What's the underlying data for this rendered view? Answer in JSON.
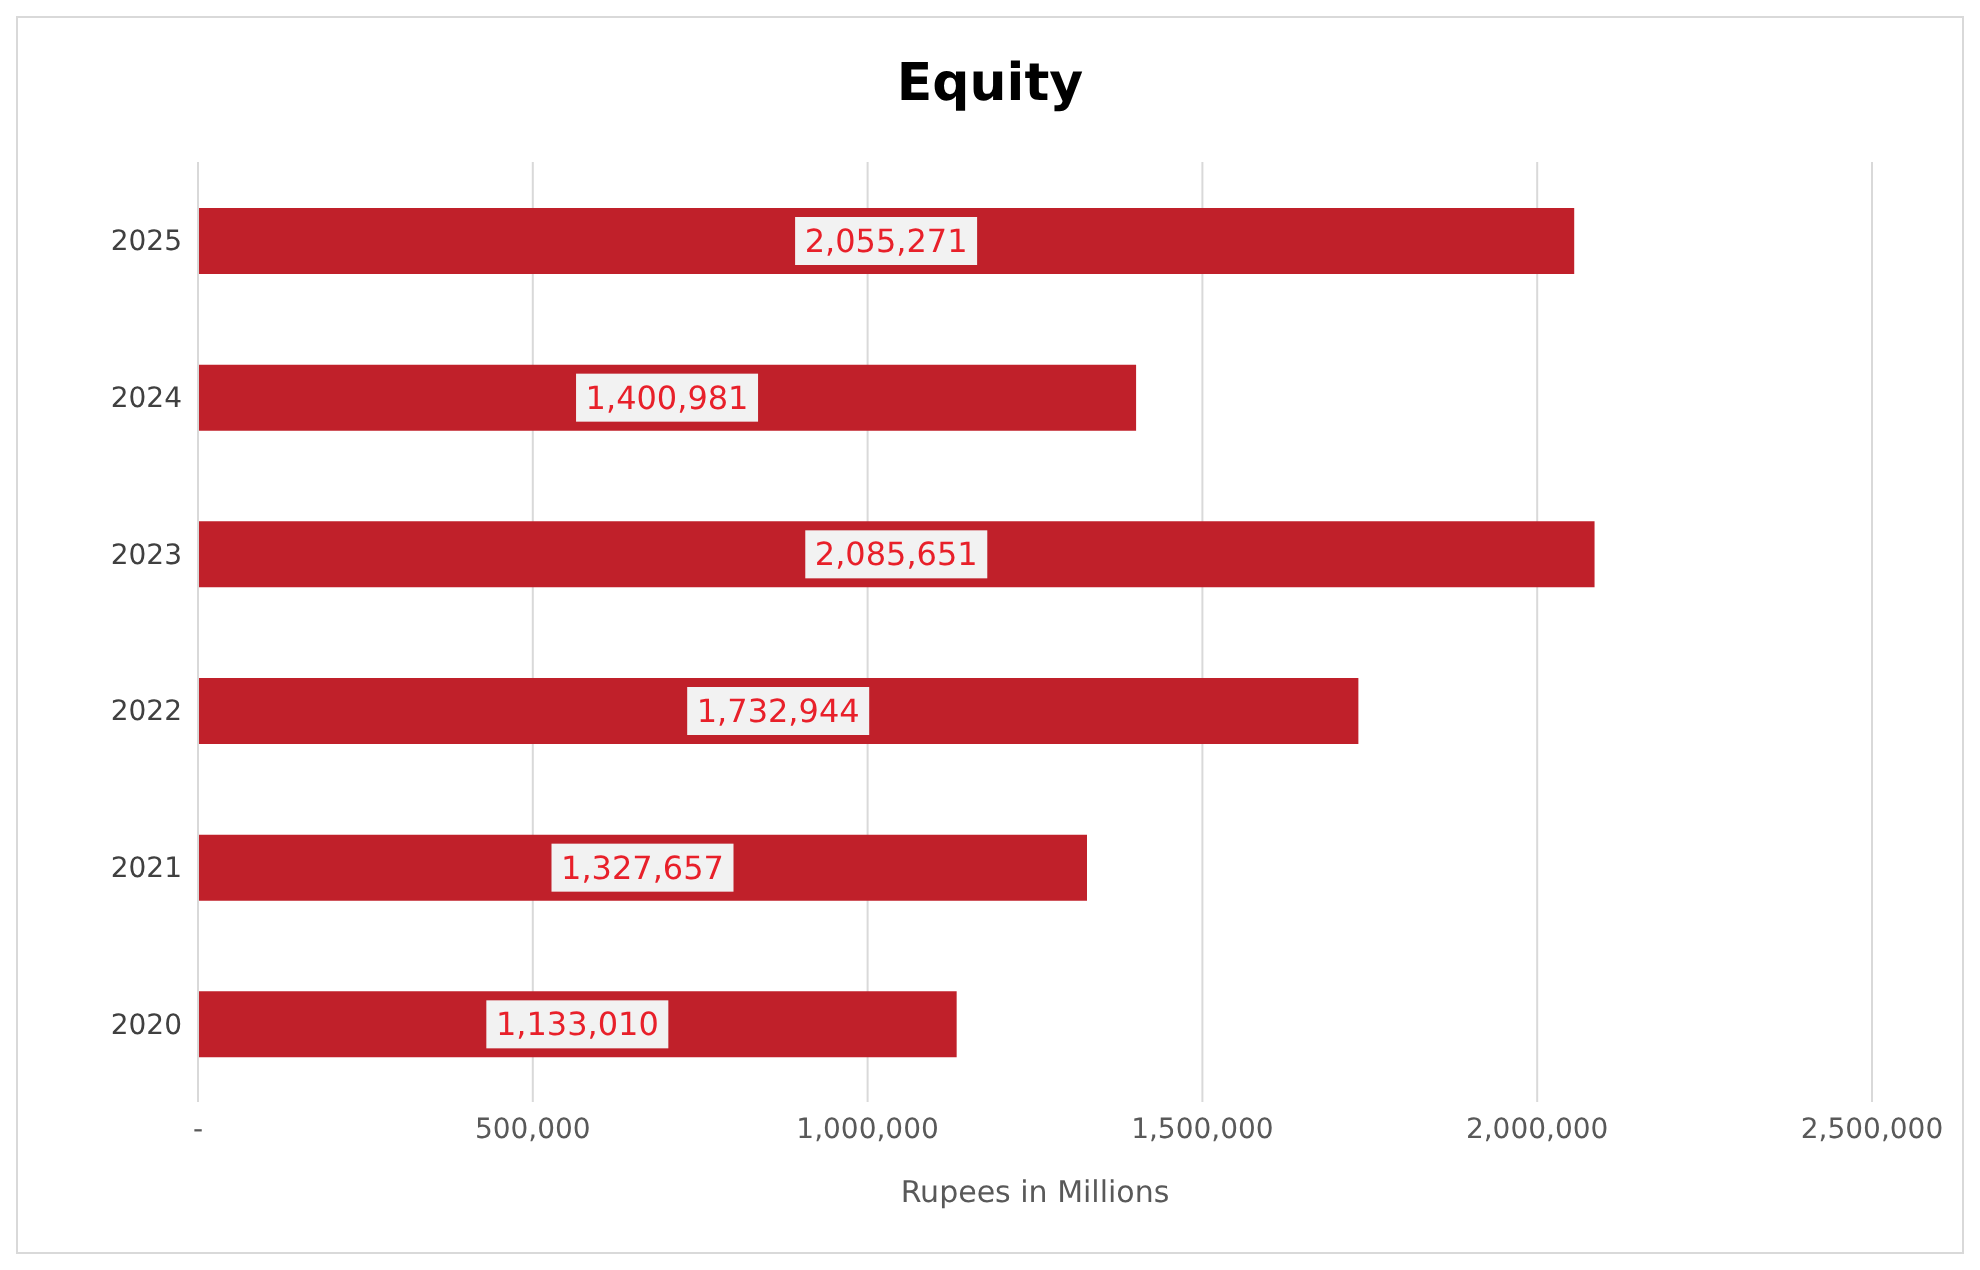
{
  "chart_data": {
    "type": "bar",
    "orientation": "horizontal",
    "title": "Equity",
    "xlabel": "Rupees in Millions",
    "categories": [
      "2025",
      "2024",
      "2023",
      "2022",
      "2021",
      "2020"
    ],
    "values": [
      2055271,
      1400981,
      2085651,
      1732944,
      1327657,
      1133010
    ],
    "color": "#c0202a",
    "xlim": [
      0,
      2500000
    ],
    "xticks": [
      {
        "value": 0,
        "label": "-"
      },
      {
        "value": 500000,
        "label": "500,000"
      },
      {
        "value": 1000000,
        "label": "1,000,000"
      },
      {
        "value": 1500000,
        "label": "1,500,000"
      },
      {
        "value": 2000000,
        "label": "2,000,000"
      },
      {
        "value": 2500000,
        "label": "2,500,000"
      }
    ],
    "value_labels": [
      "2,055,271",
      "1,400,981",
      "2,085,651",
      "1,732,944",
      "1,327,657",
      "1,133,010"
    ],
    "grid": "x",
    "legend": false
  }
}
